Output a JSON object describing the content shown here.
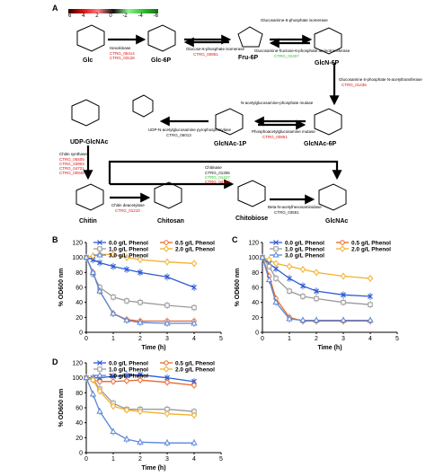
{
  "panels": {
    "a": "A",
    "b": "B",
    "c": "C",
    "d": "D"
  },
  "colorbar": {
    "ticks": [
      "6",
      "4",
      "2",
      "0",
      "-2",
      "-4",
      "-6"
    ]
  },
  "pathway": {
    "metabolites": {
      "glc": "Glc",
      "glc6p": "Glc-6P",
      "fru6p": "Fru-6P",
      "glcn6p": "GlcN-6P",
      "glcnac6p": "GlcNAc-6P",
      "glcnac1p": "GlcNAc-1P",
      "udpglcnac": "UDP-GlcNAc",
      "chitin": "Chitin",
      "chitosan": "Chitosan",
      "chitobiose": "Chitobiose",
      "glcnac": "GlcNAc"
    },
    "enzymes": {
      "hexokinase": {
        "name": "Hexokinase",
        "genes": [
          "CTRG_05414",
          "CTRG_03128"
        ],
        "colors": [
          "#e01010",
          "#e01010"
        ]
      },
      "g6pi": {
        "name": "Glucose-6-phosphate isomerase",
        "genes": [
          "CTRG_00851"
        ],
        "colors": [
          "#e01010"
        ]
      },
      "gfat": {
        "name": "Glucosamine-6-phosphate isomerase",
        "name2": "Glucosamine-fructose-6-phosphate aminotransferase",
        "genes": [
          "CTRG_02407"
        ],
        "colors": [
          "#30c030"
        ]
      },
      "gna": {
        "name": "Glucosamine 6-phosphate N-acetyltransferase",
        "genes": [
          "CTRG_01436"
        ],
        "colors": [
          "#e01010"
        ]
      },
      "agm": {
        "name": "N-acetylglucosamine-phosphate mutase",
        "name2": "Phosphoacetylglucosamine mutase",
        "genes": [
          "CTRG_00851"
        ],
        "colors": [
          "#e01010"
        ]
      },
      "uap": {
        "name": "UDP-N-acetylglucosamine pyrophosphorylase",
        "genes": [
          "CTRG_06013"
        ],
        "colors": [
          "#111111"
        ]
      },
      "chs": {
        "name": "Chitin synthase",
        "genes": [
          "CTRG_05505",
          "CTRG_03903",
          "CTRG_04721",
          "CTRG_00945"
        ],
        "colors": [
          "#e01010",
          "#e01010",
          "#e01010",
          "#e01010"
        ]
      },
      "cda": {
        "name": "Chitin deacetylase",
        "genes": [
          "CTRG_01210"
        ],
        "colors": [
          "#e01010"
        ]
      },
      "cht": {
        "name": "Chitinase",
        "genes": [
          "CTRG_01305",
          "CTRG_01427",
          "CTRG_04102"
        ],
        "colors": [
          "#111111",
          "#30c030",
          "#e01010"
        ]
      },
      "hex": {
        "name": "Beta-N-acetylhexosaminidase",
        "genes": [
          "CTRG_03551"
        ],
        "colors": [
          "#111111"
        ]
      }
    }
  },
  "charts_meta": {
    "xlabel": "Time (h)",
    "ylabel": "% OD600 nm",
    "xticks": [
      "0",
      "1",
      "2",
      "3",
      "4",
      "5"
    ],
    "yticks": [
      "0",
      "20",
      "40",
      "60",
      "80",
      "100",
      "120"
    ]
  },
  "chart_data": [
    {
      "panel": "B",
      "type": "line",
      "xlim": [
        0,
        5
      ],
      "ylim": [
        0,
        120
      ],
      "series": [
        {
          "name": "0.0 g/L Phenol",
          "color": "#2e5bd6",
          "marker": "x",
          "x": [
            0,
            0.25,
            0.5,
            1,
            1.5,
            2,
            3,
            4
          ],
          "y": [
            100,
            97,
            93,
            88,
            84,
            80,
            74,
            60
          ]
        },
        {
          "name": "0.5 g/L Phenol",
          "color": "#e8662a",
          "marker": "o",
          "x": [
            0,
            0.25,
            0.5,
            1,
            1.5,
            2,
            3,
            4
          ],
          "y": [
            100,
            80,
            55,
            25,
            17,
            15,
            15,
            15
          ]
        },
        {
          "name": "1.0 g/L Phenol",
          "color": "#9a9a9a",
          "marker": "s",
          "x": [
            0,
            0.25,
            0.5,
            1,
            1.5,
            2,
            3,
            4
          ],
          "y": [
            100,
            78,
            60,
            47,
            42,
            40,
            36,
            33
          ]
        },
        {
          "name": "2.0 g/L Phenol",
          "color": "#f2b12e",
          "marker": "d",
          "x": [
            0,
            0.25,
            0.5,
            1,
            1.5,
            2,
            3,
            4
          ],
          "y": [
            100,
            102,
            104,
            104,
            100,
            97,
            94,
            92
          ]
        },
        {
          "name": "3.0 g/L Phenol",
          "color": "#5a86d8",
          "marker": "^",
          "x": [
            0,
            0.25,
            0.5,
            1,
            1.5,
            2,
            3,
            4
          ],
          "y": [
            100,
            80,
            55,
            25,
            16,
            13,
            12,
            12
          ]
        }
      ]
    },
    {
      "panel": "C",
      "type": "line",
      "xlim": [
        0,
        5
      ],
      "ylim": [
        0,
        120
      ],
      "series": [
        {
          "name": "0.0 g/L Phenol",
          "color": "#2e5bd6",
          "marker": "x",
          "x": [
            0,
            0.25,
            0.5,
            1,
            1.5,
            2,
            3,
            4
          ],
          "y": [
            100,
            92,
            85,
            72,
            62,
            55,
            50,
            48
          ]
        },
        {
          "name": "0.5 g/L Phenol",
          "color": "#e8662a",
          "marker": "o",
          "x": [
            0,
            0.25,
            0.5,
            1,
            1.5,
            2,
            3,
            4
          ],
          "y": [
            100,
            75,
            45,
            20,
            15,
            15,
            15,
            15
          ]
        },
        {
          "name": "1.0 g/L Phenol",
          "color": "#9a9a9a",
          "marker": "s",
          "x": [
            0,
            0.25,
            0.5,
            1,
            1.5,
            2,
            3,
            4
          ],
          "y": [
            100,
            88,
            72,
            55,
            48,
            45,
            40,
            37
          ]
        },
        {
          "name": "2.0 g/L Phenol",
          "color": "#f2b12e",
          "marker": "d",
          "x": [
            0,
            0.25,
            0.5,
            1,
            1.5,
            2,
            3,
            4
          ],
          "y": [
            100,
            97,
            92,
            88,
            84,
            80,
            75,
            72
          ]
        },
        {
          "name": "3.0 g/L Phenol",
          "color": "#5a86d8",
          "marker": "^",
          "x": [
            0,
            0.25,
            0.5,
            1,
            1.5,
            2,
            3,
            4
          ],
          "y": [
            100,
            70,
            40,
            18,
            16,
            16,
            16,
            16
          ]
        }
      ]
    },
    {
      "panel": "D",
      "type": "line",
      "xlim": [
        0,
        5
      ],
      "ylim": [
        0,
        120
      ],
      "series": [
        {
          "name": "0.0 g/L Phenol",
          "color": "#2e5bd6",
          "marker": "x",
          "x": [
            0,
            0.25,
            0.5,
            1,
            1.5,
            2,
            3,
            4
          ],
          "y": [
            100,
            100,
            100,
            102,
            103,
            104,
            100,
            95
          ]
        },
        {
          "name": "0.5 g/L Phenol",
          "color": "#e8662a",
          "marker": "o",
          "x": [
            0,
            0.25,
            0.5,
            1,
            1.5,
            2,
            3,
            4
          ],
          "y": [
            100,
            97,
            95,
            95,
            96,
            97,
            94,
            90
          ]
        },
        {
          "name": "1.0 g/L Phenol",
          "color": "#9a9a9a",
          "marker": "s",
          "x": [
            0,
            0.25,
            0.5,
            1,
            1.5,
            2,
            3,
            4
          ],
          "y": [
            100,
            98,
            85,
            66,
            58,
            58,
            58,
            55
          ]
        },
        {
          "name": "2.0 g/L Phenol",
          "color": "#f2b12e",
          "marker": "d",
          "x": [
            0,
            0.25,
            0.5,
            1,
            1.5,
            2,
            3,
            4
          ],
          "y": [
            100,
            97,
            82,
            62,
            57,
            55,
            52,
            50
          ]
        },
        {
          "name": "3.0 g/L Phenol",
          "color": "#5a86d8",
          "marker": "^",
          "x": [
            0,
            0.25,
            0.5,
            1,
            1.5,
            2,
            3,
            4
          ],
          "y": [
            100,
            78,
            55,
            28,
            18,
            14,
            13,
            13
          ]
        }
      ]
    }
  ]
}
